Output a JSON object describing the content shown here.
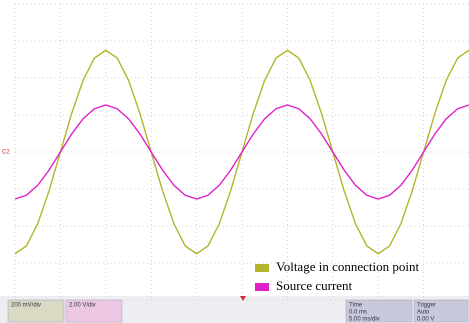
{
  "chart_data": {
    "type": "line",
    "x": [
      0,
      0.25,
      0.5,
      0.75,
      1,
      1.25,
      1.5,
      1.75,
      2,
      2.25,
      2.5,
      2.75,
      3,
      3.25,
      3.5,
      3.75,
      4,
      4.25,
      4.5,
      4.75,
      5,
      5.25,
      5.5,
      5.75,
      6,
      6.25,
      6.5,
      6.75,
      7,
      7.25,
      7.5,
      7.75,
      8,
      8.25,
      8.5,
      8.75,
      9,
      9.25,
      9.5,
      9.75,
      10
    ],
    "series": [
      {
        "name": "Voltage in connection point",
        "color": "#b3b52c",
        "values": [
          -2.75,
          -2.54,
          -1.94,
          -1.05,
          0,
          1.05,
          1.94,
          2.54,
          2.75,
          2.54,
          1.94,
          1.05,
          0,
          -1.05,
          -1.94,
          -2.54,
          -2.75,
          -2.54,
          -1.94,
          -1.05,
          0,
          1.05,
          1.94,
          2.54,
          2.75,
          2.54,
          1.94,
          1.05,
          0,
          -1.05,
          -1.94,
          -2.54,
          -2.75,
          -2.54,
          -1.94,
          -1.05,
          0,
          1.05,
          1.94,
          2.54,
          2.75
        ]
      },
      {
        "name": "Source current",
        "color": "#e020c8",
        "values": [
          -1.27,
          -1.17,
          -0.9,
          -0.49,
          0,
          0.49,
          0.9,
          1.17,
          1.27,
          1.17,
          0.9,
          0.49,
          0,
          -0.49,
          -0.9,
          -1.17,
          -1.27,
          -1.17,
          -0.9,
          -0.49,
          0,
          0.49,
          0.9,
          1.17,
          1.27,
          1.17,
          0.9,
          0.49,
          0,
          -0.49,
          -0.9,
          -1.17,
          -1.27,
          -1.17,
          -0.9,
          -0.49,
          0,
          0.49,
          0.9,
          1.17,
          1.27
        ]
      }
    ],
    "xlim": [
      0,
      10
    ],
    "ylim": [
      -4,
      4
    ],
    "xticks": [
      0,
      1,
      2,
      3,
      4,
      5,
      6,
      7,
      8,
      9,
      10
    ],
    "yticks": [
      -4,
      -3,
      -2,
      -1,
      0,
      1,
      2,
      3,
      4
    ],
    "grid": true,
    "legend": "bottom-right",
    "marker_label": "C2",
    "status_boxes": [
      {
        "color": "#d9d9c4",
        "texts": [
          "200 mV/div"
        ]
      },
      {
        "color": "#ecc8e4",
        "texts": [
          "2.00 V/div"
        ]
      },
      {
        "color": "#c8cadc",
        "texts": [
          "Time",
          "0.0 ms",
          "5.00 ms/div"
        ]
      },
      {
        "color": "#c8cadc",
        "texts": [
          "Trigger",
          "Auto",
          "0.00 V"
        ]
      }
    ]
  }
}
